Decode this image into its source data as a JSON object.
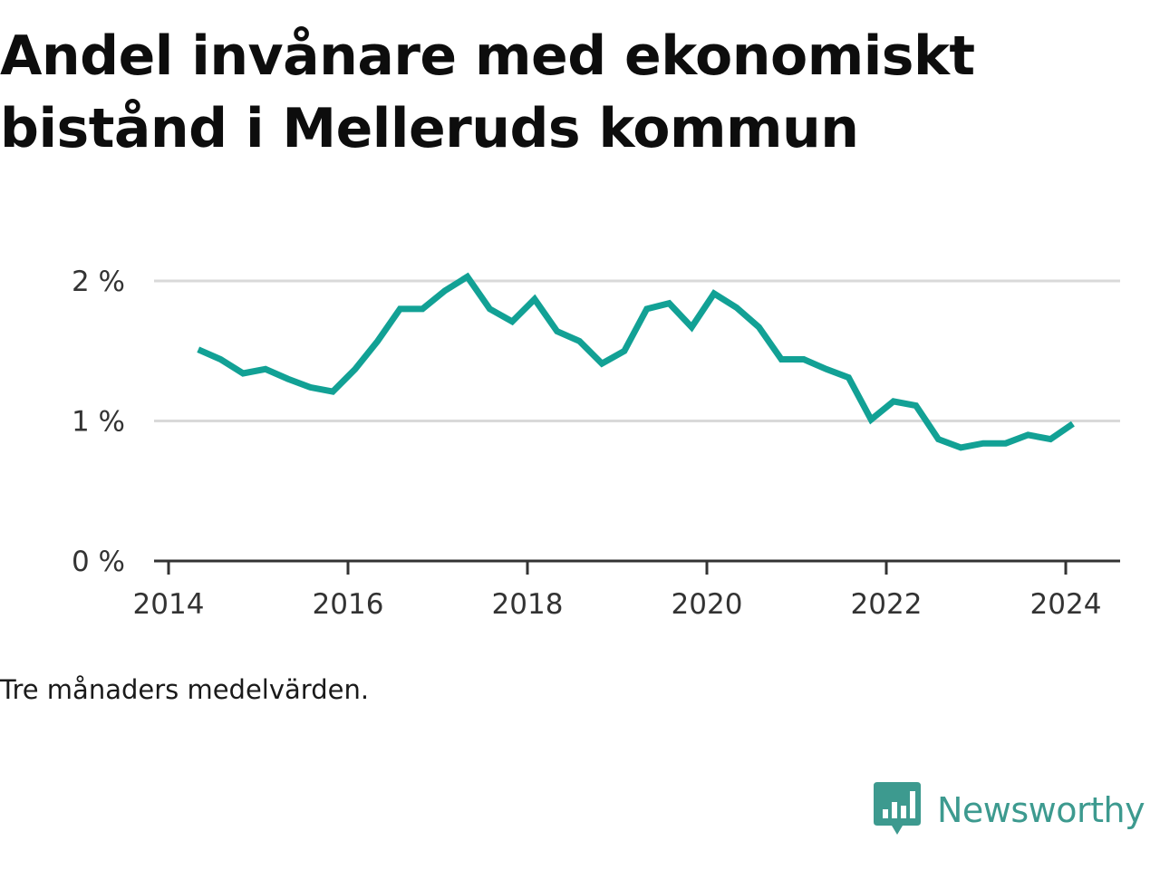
{
  "title": "Andel invånare med ekonomiskt bistånd i Melleruds kommun",
  "note": "Tre månaders medelvärden.",
  "brand": {
    "name": "Newsworthy",
    "icon": "bar-chart-speech-bubble-icon",
    "color": "#3d9a8f"
  },
  "colors": {
    "line": "#12a195",
    "grid": "#d9d9d9",
    "axis": "#333333"
  },
  "chart_data": {
    "type": "line",
    "title": "Andel invånare med ekonomiskt bistånd i Melleruds kommun",
    "xlabel": "",
    "ylabel": "",
    "ylim": [
      0,
      2
    ],
    "xlim": [
      2014,
      2024.6
    ],
    "y_ticks": [
      {
        "value": 0,
        "label": "0 %"
      },
      {
        "value": 1,
        "label": "1 %"
      },
      {
        "value": 2,
        "label": "2 %"
      }
    ],
    "x_ticks": [
      {
        "value": 2014,
        "label": "2014"
      },
      {
        "value": 2016,
        "label": "2016"
      },
      {
        "value": 2018,
        "label": "2018"
      },
      {
        "value": 2020,
        "label": "2020"
      },
      {
        "value": 2022,
        "label": "2022"
      },
      {
        "value": 2024,
        "label": "2024"
      }
    ],
    "grid": true,
    "series": [
      {
        "x": [
          2014.33,
          2014.58,
          2014.83,
          2015.08,
          2015.33,
          2015.58,
          2015.83,
          2016.08,
          2016.33,
          2016.58,
          2016.83,
          2017.08,
          2017.33,
          2017.58,
          2017.83,
          2018.08,
          2018.33,
          2018.58,
          2018.83,
          2019.08,
          2019.33,
          2019.58,
          2019.83,
          2020.08,
          2020.33,
          2020.58,
          2020.83,
          2021.08,
          2021.33,
          2021.58,
          2021.83,
          2022.08,
          2022.33,
          2022.58,
          2022.83,
          2023.08,
          2023.33,
          2023.58,
          2023.83,
          2024.08
        ],
        "y": [
          1.51,
          1.44,
          1.34,
          1.37,
          1.3,
          1.24,
          1.21,
          1.37,
          1.57,
          1.8,
          1.8,
          1.93,
          2.03,
          1.8,
          1.71,
          1.87,
          1.64,
          1.57,
          1.41,
          1.5,
          1.8,
          1.84,
          1.67,
          1.91,
          1.81,
          1.67,
          1.44,
          1.44,
          1.37,
          1.31,
          1.01,
          1.14,
          1.11,
          0.87,
          0.81,
          0.84,
          0.84,
          0.9,
          0.87,
          0.98
        ]
      }
    ]
  }
}
